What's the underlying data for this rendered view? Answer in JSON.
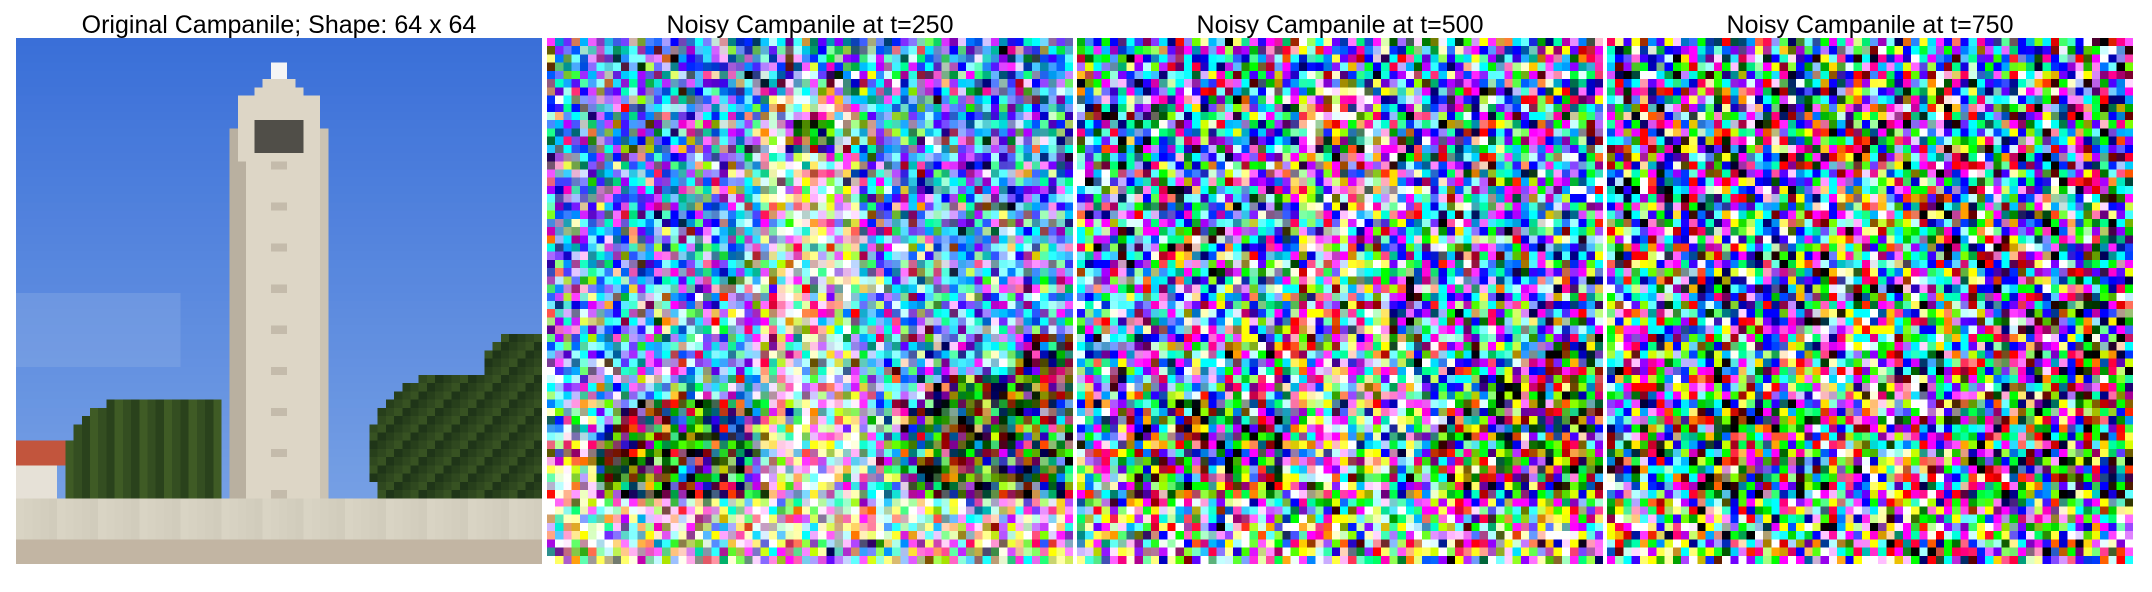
{
  "figure": {
    "panels": [
      {
        "title": "Original Campanile; Shape: 64 x 64",
        "image": "campanile-original",
        "noise_level": 0
      },
      {
        "title": "Noisy Campanile at t=250",
        "image": "campanile-noisy-t250",
        "noise_level": 0.45
      },
      {
        "title": "Noisy Campanile at t=500",
        "image": "campanile-noisy-t500",
        "noise_level": 0.7
      },
      {
        "title": "Noisy Campanile at t=750",
        "image": "campanile-noisy-t750",
        "noise_level": 0.88
      }
    ],
    "colors": {
      "sky_top": "#3a6fd8",
      "sky_bottom": "#7fa7e6",
      "tower": "#ddd6c6",
      "tower_shadow": "#b9b0a0",
      "trees_dark": "#1f3518",
      "trees_mid": "#3f5b25",
      "ground": "#d9d4c4",
      "roof": "#c2553d"
    }
  }
}
